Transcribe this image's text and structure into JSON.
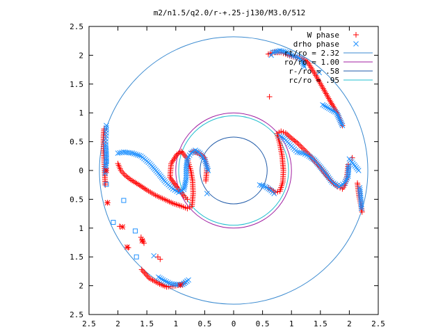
{
  "chart_data": {
    "type": "scatter",
    "title": "m2/n1.5/q2.0/r-+.25-j130/M3.0/512",
    "xlim": [
      -2.5,
      2.5
    ],
    "ylim": [
      -2.5,
      2.5
    ],
    "xticks": [
      {
        "value": -2.5,
        "label": "2.5"
      },
      {
        "value": -2,
        "label": "2"
      },
      {
        "value": -1.5,
        "label": "1.5"
      },
      {
        "value": -1,
        "label": "1"
      },
      {
        "value": -0.5,
        "label": "0.5"
      },
      {
        "value": 0,
        "label": "0"
      },
      {
        "value": 0.5,
        "label": "0.5"
      },
      {
        "value": 1,
        "label": "1"
      },
      {
        "value": 1.5,
        "label": "1.5"
      },
      {
        "value": 2,
        "label": "2"
      },
      {
        "value": 2.5,
        "label": "2.5"
      }
    ],
    "yticks": [
      {
        "value": 2.5,
        "label": "2.5"
      },
      {
        "value": 2,
        "label": "2"
      },
      {
        "value": 1.5,
        "label": "1.5"
      },
      {
        "value": 1,
        "label": "1"
      },
      {
        "value": 0.5,
        "label": "0.5"
      },
      {
        "value": 0,
        "label": "0"
      },
      {
        "value": -0.5,
        "label": "0.5"
      },
      {
        "value": -1,
        "label": "1"
      },
      {
        "value": -1.5,
        "label": "1.5"
      },
      {
        "value": -2,
        "label": "2"
      },
      {
        "value": -2.5,
        "label": "2.5"
      }
    ],
    "legend_position": "top-right",
    "circles": [
      {
        "name": "rt/ro = 2.32",
        "r": 2.32,
        "color": "#3a8ad0"
      },
      {
        "name": "ro/ro = 1.00",
        "r": 1.0,
        "color": "#a01ca0"
      },
      {
        "name": "r-/ro = .58",
        "r": 0.58,
        "color": "#1f5aa8"
      },
      {
        "name": "rc/ro = .95",
        "r": 0.95,
        "color": "#22bfcf"
      }
    ],
    "series": [
      {
        "name": "W phase",
        "marker": "plus",
        "color": "#ff0000",
        "points": [
          [
            -2.24,
            0.72
          ],
          [
            -2.25,
            0.6
          ],
          [
            -2.25,
            0.48
          ],
          [
            -2.25,
            0.35
          ],
          [
            -2.24,
            0.2
          ],
          [
            -2.23,
            0.0
          ],
          [
            -2.22,
            -0.25
          ],
          [
            -2.18,
            -0.56
          ],
          [
            -1.97,
            -0.97
          ],
          [
            -1.82,
            -1.34
          ],
          [
            -1.59,
            -1.72
          ],
          [
            -1.46,
            -1.87
          ],
          [
            -1.28,
            -1.97
          ],
          [
            -1.16,
            -2.02
          ],
          [
            -1.0,
            -2.0
          ],
          [
            -0.86,
            -1.96
          ],
          [
            -1.31,
            -1.5
          ],
          [
            -1.27,
            -1.54
          ],
          [
            -1.6,
            -1.16
          ],
          [
            -1.58,
            -1.2
          ],
          [
            -1.55,
            -1.26
          ],
          [
            -2.0,
            0.12
          ],
          [
            -1.95,
            0.0
          ],
          [
            -1.88,
            -0.08
          ],
          [
            -1.78,
            -0.16
          ],
          [
            -1.65,
            -0.24
          ],
          [
            -1.5,
            -0.34
          ],
          [
            -1.35,
            -0.43
          ],
          [
            -1.2,
            -0.5
          ],
          [
            -1.05,
            -0.57
          ],
          [
            -0.9,
            -0.62
          ],
          [
            -0.8,
            -0.66
          ],
          [
            -0.72,
            -0.62
          ],
          [
            -0.7,
            -0.4
          ],
          [
            -0.71,
            -0.18
          ],
          [
            -0.74,
            0.0
          ],
          [
            -0.8,
            0.2
          ],
          [
            -0.9,
            0.33
          ],
          [
            -0.98,
            0.28
          ],
          [
            -1.08,
            0.12
          ],
          [
            -1.1,
            -0.12
          ],
          [
            -0.97,
            -0.3
          ],
          [
            -0.86,
            -0.44
          ],
          [
            -0.8,
            -0.5
          ],
          [
            -0.72,
            0.33
          ],
          [
            -0.6,
            0.3
          ],
          [
            -0.5,
            0.22
          ],
          [
            -0.46,
            0.06
          ],
          [
            -0.48,
            -0.18
          ],
          [
            0.62,
            1.28
          ],
          [
            0.75,
            0.64
          ],
          [
            0.82,
            0.68
          ],
          [
            0.9,
            0.65
          ],
          [
            1.0,
            0.56
          ],
          [
            1.1,
            0.48
          ],
          [
            1.2,
            0.38
          ],
          [
            1.3,
            0.28
          ],
          [
            1.4,
            0.16
          ],
          [
            1.5,
            0.05
          ],
          [
            1.6,
            -0.08
          ],
          [
            1.7,
            -0.2
          ],
          [
            1.8,
            -0.28
          ],
          [
            1.88,
            -0.32
          ],
          [
            1.92,
            -0.26
          ],
          [
            1.96,
            -0.1
          ],
          [
            1.98,
            0.1
          ],
          [
            0.6,
            -0.3
          ],
          [
            0.72,
            -0.38
          ],
          [
            0.8,
            -0.36
          ],
          [
            0.85,
            -0.2
          ],
          [
            0.86,
            0.0
          ],
          [
            0.84,
            0.24
          ],
          [
            0.8,
            0.46
          ],
          [
            0.76,
            0.6
          ],
          [
            0.6,
            2.02
          ],
          [
            0.7,
            2.05
          ],
          [
            0.82,
            2.05
          ],
          [
            0.9,
            2.02
          ],
          [
            1.0,
            1.98
          ],
          [
            1.1,
            1.96
          ],
          [
            1.2,
            1.93
          ],
          [
            1.28,
            1.88
          ],
          [
            1.42,
            1.65
          ],
          [
            1.55,
            1.42
          ],
          [
            1.66,
            1.22
          ],
          [
            1.8,
            0.98
          ],
          [
            1.88,
            0.78
          ],
          [
            2.05,
            0.22
          ],
          [
            2.14,
            -0.22
          ],
          [
            2.17,
            -0.46
          ],
          [
            2.2,
            -0.6
          ],
          [
            2.22,
            -0.72
          ]
        ]
      },
      {
        "name": "drho phase",
        "marker": "cross",
        "color": "#1e90ff",
        "points": [
          [
            -2.2,
            0.78
          ],
          [
            -2.2,
            0.7
          ],
          [
            -2.2,
            0.65
          ],
          [
            -2.2,
            0.6
          ],
          [
            -2.21,
            0.55
          ],
          [
            -2.21,
            0.5
          ],
          [
            -2.21,
            0.45
          ],
          [
            -2.2,
            0.3
          ],
          [
            -2.2,
            0.15
          ],
          [
            -2.22,
            -0.05
          ],
          [
            -2.0,
            0.3
          ],
          [
            -1.9,
            0.32
          ],
          [
            -1.75,
            0.3
          ],
          [
            -1.6,
            0.25
          ],
          [
            -1.45,
            0.12
          ],
          [
            -1.3,
            -0.05
          ],
          [
            -1.18,
            -0.2
          ],
          [
            -1.05,
            -0.32
          ],
          [
            -0.95,
            -0.38
          ],
          [
            -0.86,
            -0.33
          ],
          [
            -0.82,
            -0.15
          ],
          [
            -0.82,
            0.05
          ],
          [
            -0.8,
            0.2
          ],
          [
            -0.74,
            0.3
          ],
          [
            -0.66,
            0.35
          ],
          [
            -0.58,
            0.3
          ],
          [
            -0.5,
            0.18
          ],
          [
            -0.44,
            0.0
          ],
          [
            -0.46,
            -0.4
          ],
          [
            -1.38,
            -1.48
          ],
          [
            -1.3,
            -1.85
          ],
          [
            -1.22,
            -1.9
          ],
          [
            -1.1,
            -1.96
          ],
          [
            -1.0,
            -1.98
          ],
          [
            -0.88,
            -1.98
          ],
          [
            -0.78,
            -1.9
          ],
          [
            -0.86,
            -1.96
          ],
          [
            0.45,
            -0.25
          ],
          [
            0.55,
            -0.28
          ],
          [
            0.65,
            -0.35
          ],
          [
            0.7,
            -0.4
          ],
          [
            0.65,
            2.0
          ],
          [
            0.68,
            2.05
          ],
          [
            0.8,
            2.08
          ],
          [
            0.92,
            2.05
          ],
          [
            1.0,
            2.0
          ],
          [
            1.1,
            1.97
          ],
          [
            1.18,
            1.92
          ],
          [
            1.22,
            1.8
          ],
          [
            0.8,
            0.6
          ],
          [
            0.88,
            0.55
          ],
          [
            1.0,
            0.42
          ],
          [
            1.1,
            0.32
          ],
          [
            1.2,
            0.3
          ],
          [
            1.3,
            0.25
          ],
          [
            1.4,
            0.18
          ],
          [
            1.5,
            0.06
          ],
          [
            1.6,
            -0.06
          ],
          [
            1.7,
            -0.2
          ],
          [
            1.82,
            -0.28
          ],
          [
            1.92,
            -0.22
          ],
          [
            1.98,
            -0.1
          ],
          [
            1.99,
            0.08
          ],
          [
            1.48,
            1.7
          ],
          [
            1.54,
            1.14
          ],
          [
            1.78,
            1.0
          ],
          [
            1.88,
            0.78
          ],
          [
            2.0,
            0.2
          ],
          [
            2.16,
            0.0
          ],
          [
            2.18,
            -0.3
          ],
          [
            2.2,
            -0.5
          ],
          [
            2.21,
            -0.66
          ]
        ]
      },
      {
        "name": "",
        "marker": "square",
        "color": "#1e90ff",
        "points": [
          [
            -2.2,
            0.15
          ],
          [
            -2.2,
            -0.24
          ],
          [
            -2.08,
            -0.9
          ],
          [
            -1.9,
            -0.52
          ],
          [
            -1.7,
            -1.05
          ],
          [
            -1.68,
            -1.5
          ]
        ]
      },
      {
        "name": "",
        "marker": "star",
        "color": "#ff0000",
        "points": [
          [
            -2.2,
            0.0
          ],
          [
            -2.18,
            -0.56
          ],
          [
            -1.92,
            -0.98
          ],
          [
            -1.84,
            -1.33
          ],
          [
            -1.58,
            -1.22
          ],
          [
            -0.92,
            -1.99
          ]
        ]
      }
    ]
  }
}
